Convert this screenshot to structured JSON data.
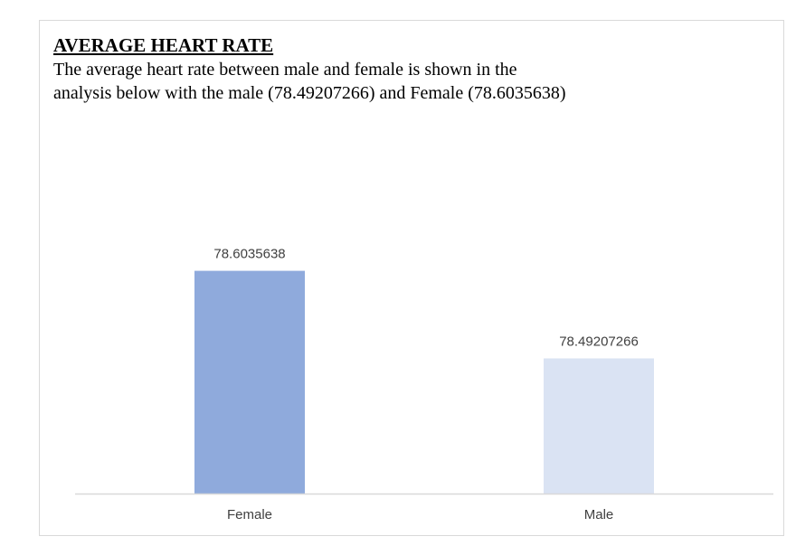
{
  "heading": "AVERAGE HEART RATE",
  "paragraph": "The average heart rate between male and female is shown in the\nanalysis below with the male (78.49207266) and Female (78.6035638)",
  "chart_data": {
    "type": "bar",
    "categories": [
      "Female",
      "Male"
    ],
    "values": [
      78.6035638,
      78.49207266
    ],
    "data_labels": [
      "78.6035638",
      "78.49207266"
    ],
    "colors": [
      "#8faadc",
      "#dae3f3"
    ],
    "axis_color": "#d9d9d9",
    "label_color": "#404040",
    "ylim": [
      78.32,
      78.61
    ],
    "title": "",
    "xlabel": "",
    "ylabel": "",
    "grid": false,
    "legend": "none"
  }
}
